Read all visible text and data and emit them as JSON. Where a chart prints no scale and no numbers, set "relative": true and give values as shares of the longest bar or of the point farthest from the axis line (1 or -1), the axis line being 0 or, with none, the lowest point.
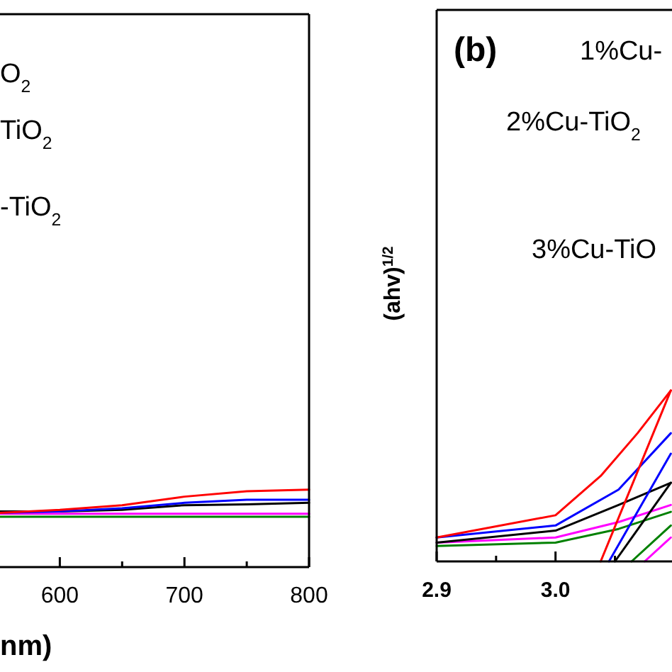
{
  "chart_data": [
    {
      "type": "line",
      "relative": true,
      "xlabel": "nm)",
      "xlim": [
        552,
        800
      ],
      "xticks": [
        600,
        {
          "value": 650,
          "label": null
        },
        700,
        {
          "value": 750,
          "label": null
        },
        800
      ],
      "tick_labels": "x",
      "x": [
        552,
        600,
        650,
        700,
        750,
        800
      ],
      "annotations": [
        "O$_{2}$",
        "TiO$_{2}$",
        "-TiO$_{2}$"
      ],
      "series": [
        {
          "color": "#008000",
          "values": [
            0.65,
            0.65,
            0.65,
            0.65,
            0.65,
            0.65
          ]
        },
        {
          "color": "#ff00ff",
          "values": [
            0.69,
            0.69,
            0.69,
            0.69,
            0.69,
            0.69
          ]
        },
        {
          "color": "#000000",
          "values": [
            0.72,
            0.72,
            0.74,
            0.8,
            0.81,
            0.83
          ]
        },
        {
          "color": "#0000ff",
          "values": [
            0.7,
            0.72,
            0.76,
            0.83,
            0.87,
            0.87
          ]
        },
        {
          "color": "#ff0000",
          "values": [
            0.7,
            0.74,
            0.8,
            0.91,
            0.98,
            1
          ]
        }
      ]
    },
    {
      "type": "line",
      "relative": true,
      "title": "(b)",
      "ylabel": "(ahv)$^{1/2}$",
      "xlim": [
        2.9,
        3.098
      ],
      "xticks": [
        2.9,
        {
          "value": 2.95,
          "label": null
        },
        {
          "value": 3,
          "label": "3.0"
        },
        {
          "value": 3.05,
          "label": null
        }
      ],
      "tick_labels": "x",
      "annotations": [
        "1%Cu-",
        "2%Cu-TiO$_{2}$",
        "3%Cu-TiO"
      ],
      "series": [
        {
          "color": "#008000",
          "x": [
            2.9,
            3.0,
            3.053,
            3.097
          ],
          "values": [
            0.09,
            0.11,
            0.19,
            0.29
          ]
        },
        {
          "color": "#ff00ff",
          "x": [
            2.9,
            3.0,
            3.053,
            3.097
          ],
          "values": [
            0.11,
            0.14,
            0.23,
            0.33
          ]
        },
        {
          "color": "#000000",
          "x": [
            2.9,
            3.0,
            3.053,
            3.097
          ],
          "values": [
            0.11,
            0.18,
            0.33,
            0.46
          ]
        },
        {
          "color": "#0000ff",
          "x": [
            2.9,
            3.0,
            3.053,
            3.097
          ],
          "values": [
            0.14,
            0.21,
            0.42,
            0.75
          ]
        },
        {
          "color": "#ff0000",
          "x": [
            2.9,
            3.0,
            3.038,
            3.069,
            3.097
          ],
          "values": [
            0.14,
            0.27,
            0.5,
            0.75,
            1
          ]
        },
        {
          "color": "#ff0000",
          "x": [
            3.038,
            3.097
          ],
          "values": [
            0,
            1
          ]
        },
        {
          "color": "#0000ff",
          "x": [
            3.045,
            3.097
          ],
          "values": [
            0,
            0.63
          ]
        },
        {
          "color": "#000000",
          "x": [
            3.05,
            3.097
          ],
          "values": [
            0,
            0.46
          ]
        },
        {
          "color": "#008000",
          "x": [
            3.064,
            3.097
          ],
          "values": [
            0,
            0.21
          ]
        },
        {
          "color": "#ff00ff",
          "x": [
            3.075,
            3.097
          ],
          "values": [
            0,
            0.14
          ]
        }
      ]
    }
  ]
}
